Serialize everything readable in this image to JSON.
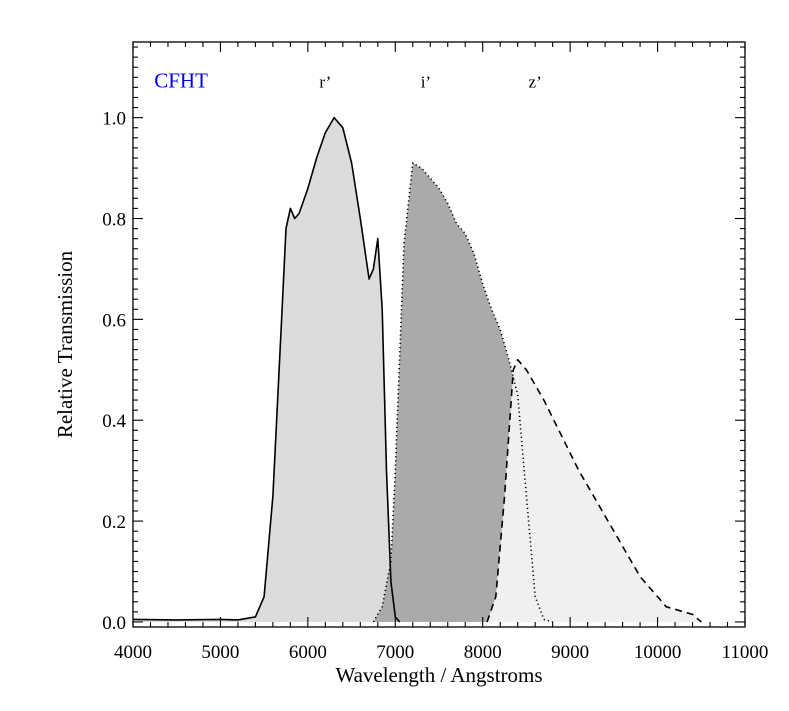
{
  "chart_data": {
    "type": "area",
    "xlabel": "Wavelength / Angstroms",
    "ylabel": "Relative Transmission",
    "xlim": [
      4000,
      11000
    ],
    "ylim": [
      -0.01,
      1.15
    ],
    "x_ticks": [
      4000,
      5000,
      6000,
      7000,
      8000,
      9000,
      10000,
      11000
    ],
    "y_ticks": [
      0.0,
      0.2,
      0.4,
      0.6,
      0.8,
      1.0
    ],
    "x_tick_labels": [
      "4000",
      "5000",
      "6000",
      "7000",
      "8000",
      "9000",
      "10000",
      "11000"
    ],
    "y_tick_labels": [
      "0.0",
      "0.2",
      "0.4",
      "0.6",
      "0.8",
      "1.0"
    ],
    "grid": false,
    "annotations": [
      {
        "text": "CFHT",
        "x": 4550,
        "y": 1.06,
        "color": "#0000ff"
      },
      {
        "text": "r’",
        "x": 6200,
        "y": 1.06,
        "color": "#000000"
      },
      {
        "text": "i’",
        "x": 7350,
        "y": 1.06,
        "color": "#000000"
      },
      {
        "text": "z’",
        "x": 8600,
        "y": 1.06,
        "color": "#000000"
      }
    ],
    "series": [
      {
        "name": "r’",
        "line_style": "solid",
        "fill": "#dcdcdc",
        "points": [
          [
            4000,
            0.005
          ],
          [
            4500,
            0.004
          ],
          [
            5000,
            0.005
          ],
          [
            5200,
            0.004
          ],
          [
            5400,
            0.01
          ],
          [
            5500,
            0.05
          ],
          [
            5600,
            0.25
          ],
          [
            5700,
            0.6
          ],
          [
            5750,
            0.78
          ],
          [
            5800,
            0.82
          ],
          [
            5850,
            0.8
          ],
          [
            5900,
            0.81
          ],
          [
            6000,
            0.86
          ],
          [
            6100,
            0.92
          ],
          [
            6200,
            0.97
          ],
          [
            6300,
            1.0
          ],
          [
            6400,
            0.98
          ],
          [
            6500,
            0.91
          ],
          [
            6600,
            0.8
          ],
          [
            6700,
            0.68
          ],
          [
            6750,
            0.7
          ],
          [
            6800,
            0.76
          ],
          [
            6850,
            0.62
          ],
          [
            6900,
            0.3
          ],
          [
            6950,
            0.08
          ],
          [
            7000,
            0.01
          ],
          [
            7050,
            0.0
          ]
        ]
      },
      {
        "name": "i’",
        "line_style": "dotted",
        "fill": "#aaaaaa",
        "points": [
          [
            6750,
            0.0
          ],
          [
            6850,
            0.03
          ],
          [
            6950,
            0.12
          ],
          [
            7000,
            0.3
          ],
          [
            7100,
            0.75
          ],
          [
            7200,
            0.91
          ],
          [
            7300,
            0.9
          ],
          [
            7400,
            0.88
          ],
          [
            7500,
            0.86
          ],
          [
            7600,
            0.83
          ],
          [
            7700,
            0.79
          ],
          [
            7800,
            0.77
          ],
          [
            7900,
            0.73
          ],
          [
            8000,
            0.67
          ],
          [
            8100,
            0.62
          ],
          [
            8200,
            0.58
          ],
          [
            8300,
            0.52
          ],
          [
            8400,
            0.45
          ],
          [
            8500,
            0.25
          ],
          [
            8600,
            0.05
          ],
          [
            8700,
            0.005
          ],
          [
            8800,
            0.0
          ]
        ]
      },
      {
        "name": "z’",
        "line_style": "dashed",
        "fill": "#f0f0f0",
        "points": [
          [
            8050,
            0.0
          ],
          [
            8150,
            0.05
          ],
          [
            8250,
            0.25
          ],
          [
            8350,
            0.5
          ],
          [
            8400,
            0.52
          ],
          [
            8500,
            0.5
          ],
          [
            8700,
            0.44
          ],
          [
            8900,
            0.37
          ],
          [
            9100,
            0.3
          ],
          [
            9300,
            0.24
          ],
          [
            9500,
            0.18
          ],
          [
            9700,
            0.12
          ],
          [
            9800,
            0.09
          ],
          [
            9900,
            0.07
          ],
          [
            10000,
            0.05
          ],
          [
            10100,
            0.03
          ],
          [
            10200,
            0.025
          ],
          [
            10300,
            0.02
          ],
          [
            10400,
            0.015
          ],
          [
            10500,
            0.0
          ]
        ]
      }
    ]
  }
}
